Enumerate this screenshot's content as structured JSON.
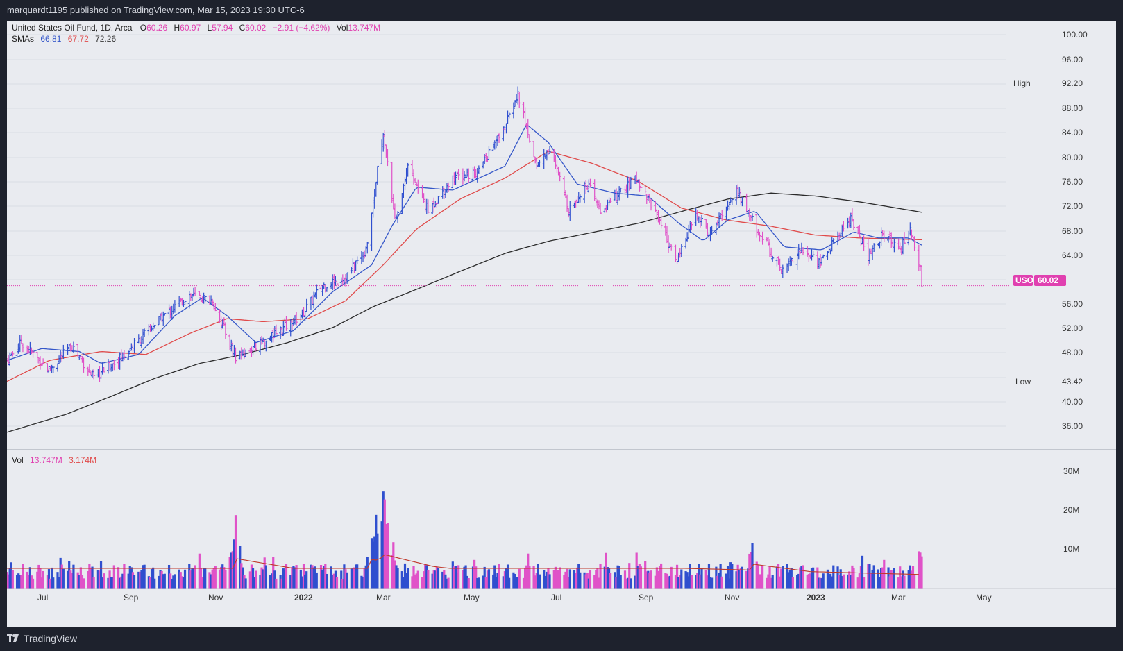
{
  "header": {
    "publish_line": "marquardt1195 published on TradingView.com, Mar 15, 2023 19:30 UTC-6"
  },
  "footer": {
    "brand": "TradingView"
  },
  "legend": {
    "title": "United States Oil Fund, 1D, Arca",
    "o_label": "O",
    "o_value": "60.26",
    "h_label": "H",
    "h_value": "60.97",
    "l_label": "L",
    "l_value": "57.94",
    "c_label": "C",
    "c_value": "60.02",
    "change": "−2.91 (−4.62%)",
    "vol_label": "Vol",
    "vol_value": "13.747M",
    "smas_label": "SMAs",
    "sma1": "66.81",
    "sma2": "67.72",
    "sma3": "72.26"
  },
  "price_scale": {
    "ticks": [
      "100.00",
      "96.00",
      "92.20",
      "88.00",
      "84.00",
      "80.00",
      "76.00",
      "72.00",
      "68.00",
      "64.00",
      "60.02",
      "56.00",
      "52.00",
      "48.00",
      "43.42",
      "40.00",
      "36.00"
    ]
  },
  "markers": {
    "high_label": "High",
    "high_value": "92.20",
    "low_label": "Low",
    "low_value": "43.42",
    "symbol": "USO",
    "last_value": "60.02"
  },
  "volume_legend": {
    "label": "Vol",
    "value1": "13.747M",
    "value2": "3.174M"
  },
  "volume_scale": {
    "ticks": [
      "30M",
      "20M",
      "10M"
    ]
  },
  "time_axis": {
    "labels": [
      "Jul",
      "Sep",
      "Nov",
      "2022",
      "Mar",
      "May",
      "Jul",
      "Sep",
      "Nov",
      "2023",
      "Mar",
      "May"
    ]
  },
  "colors": {
    "up": "#2f4fcf",
    "down": "#e052c8",
    "sma_fast": "#3557c9",
    "sma_mid": "#e04a4a",
    "sma_slow": "#2a2a2a",
    "last_price": "#e040b0",
    "panel_bg": "#e9ebf0",
    "dark_bg": "#1e222d"
  },
  "chart_data": {
    "type": "ohlc",
    "symbol": "USO",
    "interval": "1D",
    "y_range": [
      33.5,
      102
    ],
    "volume_range_M": [
      0,
      30
    ],
    "last_close": 60.02,
    "high": 92.2,
    "low": 43.42,
    "price_path": [
      [
        "2021-06-21",
        47.5
      ],
      [
        "2021-07-01",
        50.5
      ],
      [
        "2021-07-20",
        46.0
      ],
      [
        "2021-08-05",
        50.0
      ],
      [
        "2021-08-20",
        44.5
      ],
      [
        "2021-09-10",
        48.5
      ],
      [
        "2021-10-05",
        54.5
      ],
      [
        "2021-10-25",
        58.5
      ],
      [
        "2021-11-10",
        57.5
      ],
      [
        "2021-11-26",
        48.0
      ],
      [
        "2021-12-15",
        50.5
      ],
      [
        "2022-01-10",
        55.0
      ],
      [
        "2022-01-25",
        60.0
      ],
      [
        "2022-02-10",
        61.5
      ],
      [
        "2022-02-24",
        66.0
      ],
      [
        "2022-03-08",
        86.0
      ],
      [
        "2022-03-16",
        70.5
      ],
      [
        "2022-03-25",
        80.0
      ],
      [
        "2022-04-08",
        72.5
      ],
      [
        "2022-04-25",
        78.0
      ],
      [
        "2022-05-12",
        79.0
      ],
      [
        "2022-05-31",
        86.5
      ],
      [
        "2022-06-09",
        92.0
      ],
      [
        "2022-06-22",
        80.0
      ],
      [
        "2022-07-01",
        83.0
      ],
      [
        "2022-07-14",
        73.0
      ],
      [
        "2022-07-27",
        77.0
      ],
      [
        "2022-08-05",
        72.5
      ],
      [
        "2022-08-30",
        78.0
      ],
      [
        "2022-09-15",
        71.0
      ],
      [
        "2022-09-26",
        64.0
      ],
      [
        "2022-10-10",
        72.0
      ],
      [
        "2022-10-20",
        68.5
      ],
      [
        "2022-11-07",
        76.0
      ],
      [
        "2022-11-20",
        70.0
      ],
      [
        "2022-12-09",
        62.5
      ],
      [
        "2022-12-20",
        66.0
      ],
      [
        "2023-01-04",
        64.0
      ],
      [
        "2023-01-25",
        71.5
      ],
      [
        "2023-02-06",
        64.5
      ],
      [
        "2023-02-15",
        68.5
      ],
      [
        "2023-03-01",
        66.5
      ],
      [
        "2023-03-07",
        69.5
      ],
      [
        "2023-03-14",
        63.0
      ],
      [
        "2023-03-15",
        60.0
      ]
    ],
    "sma_fast": [
      [
        "2021-06-21",
        47.5
      ],
      [
        "2021-07-15",
        49.5
      ],
      [
        "2021-08-10",
        49.0
      ],
      [
        "2021-08-25",
        47.0
      ],
      [
        "2021-09-20",
        48.5
      ],
      [
        "2021-10-15",
        55.0
      ],
      [
        "2021-11-03",
        58.0
      ],
      [
        "2021-11-20",
        55.0
      ],
      [
        "2021-12-10",
        50.5
      ],
      [
        "2022-01-05",
        52.5
      ],
      [
        "2022-02-01",
        59.0
      ],
      [
        "2022-02-28",
        63.5
      ],
      [
        "2022-03-14",
        70.0
      ],
      [
        "2022-03-31",
        76.5
      ],
      [
        "2022-04-25",
        76.0
      ],
      [
        "2022-05-31",
        80.0
      ],
      [
        "2022-06-15",
        87.0
      ],
      [
        "2022-06-30",
        84.0
      ],
      [
        "2022-07-20",
        77.0
      ],
      [
        "2022-08-15",
        75.5
      ],
      [
        "2022-09-07",
        75.0
      ],
      [
        "2022-09-28",
        70.5
      ],
      [
        "2022-10-15",
        67.5
      ],
      [
        "2022-11-01",
        71.0
      ],
      [
        "2022-11-20",
        72.5
      ],
      [
        "2022-12-10",
        66.5
      ],
      [
        "2023-01-05",
        66.0
      ],
      [
        "2023-01-27",
        69.0
      ],
      [
        "2023-02-13",
        68.0
      ],
      [
        "2023-03-06",
        68.0
      ],
      [
        "2023-03-15",
        66.8
      ]
    ],
    "sma_mid": [
      [
        "2021-06-21",
        44.0
      ],
      [
        "2021-07-20",
        47.5
      ],
      [
        "2021-08-25",
        49.0
      ],
      [
        "2021-09-25",
        48.5
      ],
      [
        "2021-10-25",
        52.0
      ],
      [
        "2021-11-20",
        54.5
      ],
      [
        "2021-12-15",
        54.0
      ],
      [
        "2022-01-15",
        54.5
      ],
      [
        "2022-02-10",
        57.5
      ],
      [
        "2022-03-08",
        63.5
      ],
      [
        "2022-03-31",
        69.5
      ],
      [
        "2022-04-30",
        74.5
      ],
      [
        "2022-05-31",
        78.0
      ],
      [
        "2022-06-30",
        82.5
      ],
      [
        "2022-07-30",
        80.5
      ],
      [
        "2022-08-31",
        77.5
      ],
      [
        "2022-09-30",
        73.0
      ],
      [
        "2022-10-31",
        71.0
      ],
      [
        "2022-11-30",
        70.0
      ],
      [
        "2022-12-31",
        68.5
      ],
      [
        "2023-01-31",
        68.0
      ],
      [
        "2023-03-15",
        67.7
      ]
    ],
    "sma_slow": [
      [
        "2021-06-21",
        35.5
      ],
      [
        "2021-08-01",
        38.5
      ],
      [
        "2021-09-01",
        41.5
      ],
      [
        "2021-10-01",
        44.5
      ],
      [
        "2021-11-01",
        47.0
      ],
      [
        "2021-12-01",
        48.5
      ],
      [
        "2022-01-01",
        50.5
      ],
      [
        "2022-02-01",
        53.0
      ],
      [
        "2022-03-01",
        56.5
      ],
      [
        "2022-04-01",
        59.5
      ],
      [
        "2022-05-01",
        62.5
      ],
      [
        "2022-06-01",
        65.5
      ],
      [
        "2022-07-01",
        67.5
      ],
      [
        "2022-08-01",
        69.0
      ],
      [
        "2022-09-01",
        70.5
      ],
      [
        "2022-10-01",
        72.5
      ],
      [
        "2022-11-01",
        74.5
      ],
      [
        "2022-12-01",
        75.5
      ],
      [
        "2023-01-01",
        75.0
      ],
      [
        "2023-02-01",
        74.0
      ],
      [
        "2023-03-15",
        72.3
      ]
    ],
    "volume_spikes_M": [
      [
        "2021-11-26",
        21.0
      ],
      [
        "2022-03-08",
        30.0
      ],
      [
        "2022-03-04",
        22.5
      ],
      [
        "2022-02-28",
        19.0
      ],
      [
        "2022-03-14",
        14.0
      ],
      [
        "2022-11-18",
        13.0
      ],
      [
        "2023-03-15",
        13.7
      ]
    ]
  }
}
